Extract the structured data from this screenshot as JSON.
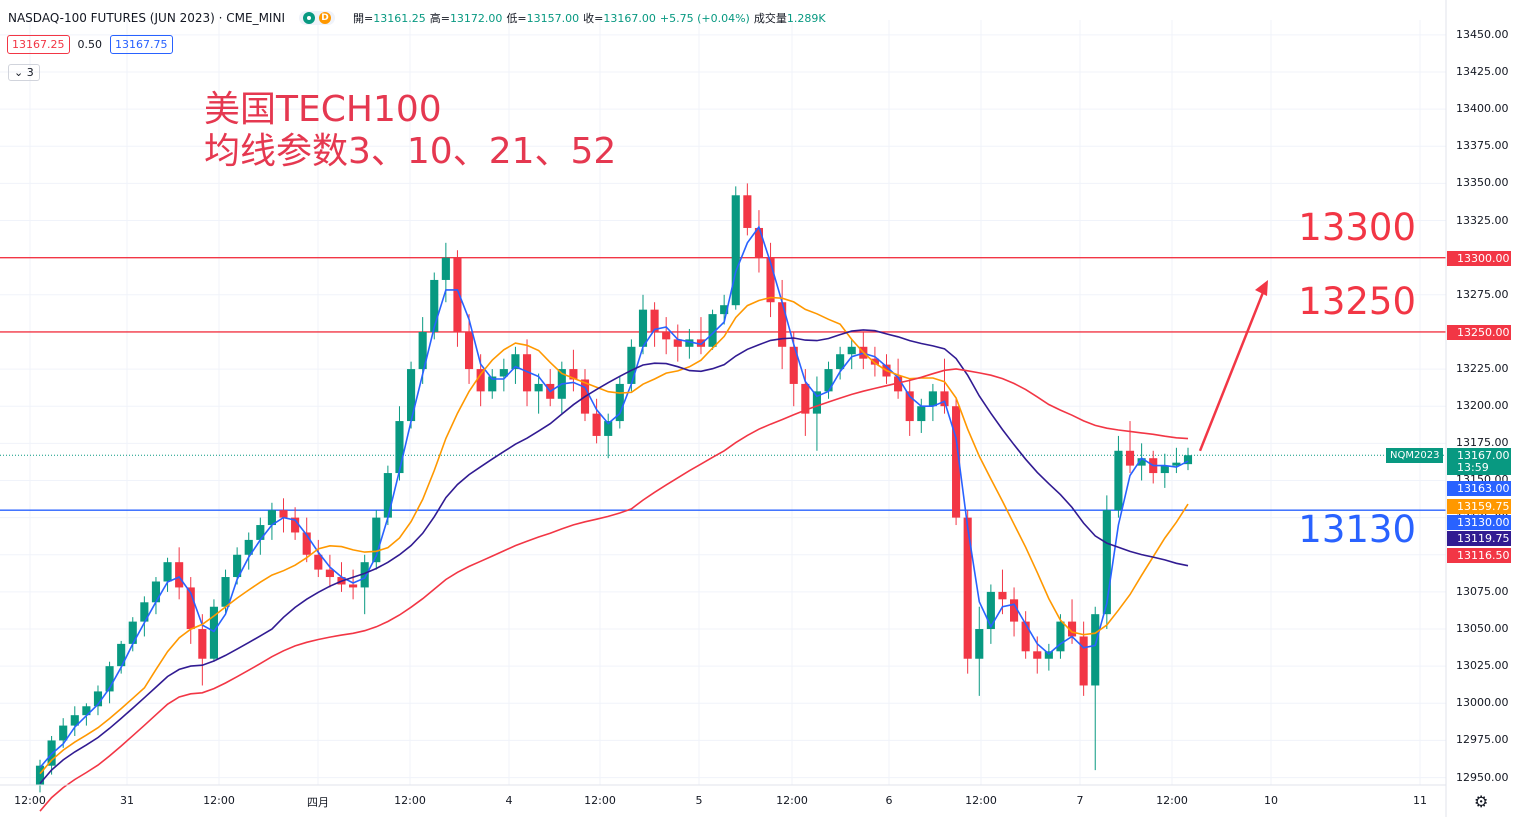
{
  "header": {
    "symbol": "NASDAQ-100 FUTURES (JUN 2023) · CME_MINI",
    "dot_letter": "D",
    "ohlc": [
      {
        "label": "開=",
        "value": "13161.25"
      },
      {
        "label": "高=",
        "value": "13172.00"
      },
      {
        "label": "低=",
        "value": "13157.00"
      },
      {
        "label": "收=",
        "value": "13167.00"
      },
      {
        "label": "",
        "value": "+5.75 (+0.04%)"
      },
      {
        "label": "成交量",
        "value": "1.289K"
      }
    ]
  },
  "bid": "13167.25",
  "spread": "0.50",
  "ask": "13167.75",
  "collapse_label": "3",
  "annotation": {
    "line1": "美国TECH100",
    "line2": "均线参数3、10、21、52"
  },
  "levels": [
    {
      "price": 13300,
      "label": "13300",
      "color": "#f23645"
    },
    {
      "price": 13250,
      "label": "13250",
      "color": "#f23645"
    },
    {
      "price": 13130,
      "label": "13130",
      "color": "#2962ff"
    }
  ],
  "price_axis": [
    "13450.00",
    "13425.00",
    "13400.00",
    "13375.00",
    "13350.00",
    "13325.00",
    "13300.00",
    "13275.00",
    "13250.00",
    "13225.00",
    "13200.00",
    "13175.00",
    "13150.00",
    "13125.00",
    "13100.00",
    "13075.00",
    "13050.00",
    "13025.00",
    "13000.00",
    "12975.00",
    "12950.00"
  ],
  "price_tags": [
    {
      "text": "13300.00",
      "color": "#f23645",
      "price": 13300
    },
    {
      "text": "13250.00",
      "color": "#f23645",
      "price": 13250
    },
    {
      "text": "13167.00",
      "color": "#089981",
      "price": 13167
    },
    {
      "text": "13:59",
      "color": "#089981",
      "price": 13159
    },
    {
      "text": "13163.00",
      "color": "#2962ff",
      "price": 13145
    },
    {
      "text": "13159.75",
      "color": "#ff9800",
      "price": 13133
    },
    {
      "text": "13130.00",
      "color": "#2962ff",
      "price": 13122
    },
    {
      "text": "13119.75",
      "color": "#311b92",
      "price": 13111
    },
    {
      "text": "13116.50",
      "color": "#f23645",
      "price": 13100
    }
  ],
  "instrument_tag": "NQM2023",
  "time_axis": [
    "12:00",
    "31",
    "12:00",
    "四月",
    "12:00",
    "4",
    "12:00",
    "5",
    "12:00",
    "6",
    "12:00",
    "7",
    "12:00",
    "10",
    "11"
  ],
  "chart_data": {
    "type": "candlestick",
    "symbol": "NQM2023",
    "ylim": [
      12945,
      13460
    ],
    "candles": [
      [
        12945,
        12962,
        12940,
        12958
      ],
      [
        12958,
        12978,
        12952,
        12975
      ],
      [
        12975,
        12990,
        12970,
        12985
      ],
      [
        12985,
        12998,
        12978,
        12992
      ],
      [
        12992,
        13000,
        12985,
        12998
      ],
      [
        12998,
        13012,
        12992,
        13008
      ],
      [
        13008,
        13028,
        13000,
        13025
      ],
      [
        13025,
        13042,
        13020,
        13040
      ],
      [
        13040,
        13058,
        13035,
        13055
      ],
      [
        13055,
        13072,
        13045,
        13068
      ],
      [
        13068,
        13085,
        13060,
        13082
      ],
      [
        13082,
        13098,
        13075,
        13095
      ],
      [
        13095,
        13105,
        13070,
        13078
      ],
      [
        13078,
        13085,
        13040,
        13050
      ],
      [
        13050,
        13060,
        13012,
        13030
      ],
      [
        13030,
        13070,
        13028,
        13065
      ],
      [
        13065,
        13090,
        13060,
        13085
      ],
      [
        13085,
        13105,
        13080,
        13100
      ],
      [
        13100,
        13115,
        13090,
        13110
      ],
      [
        13110,
        13125,
        13100,
        13120
      ],
      [
        13120,
        13135,
        13110,
        13130
      ],
      [
        13130,
        13138,
        13115,
        13125
      ],
      [
        13125,
        13132,
        13110,
        13115
      ],
      [
        13115,
        13125,
        13095,
        13100
      ],
      [
        13100,
        13110,
        13085,
        13090
      ],
      [
        13090,
        13100,
        13078,
        13085
      ],
      [
        13085,
        13095,
        13075,
        13080
      ],
      [
        13080,
        13090,
        13070,
        13078
      ],
      [
        13078,
        13100,
        13060,
        13095
      ],
      [
        13095,
        13130,
        13090,
        13125
      ],
      [
        13125,
        13160,
        13120,
        13155
      ],
      [
        13155,
        13200,
        13150,
        13190
      ],
      [
        13190,
        13230,
        13185,
        13225
      ],
      [
        13225,
        13260,
        13215,
        13250
      ],
      [
        13250,
        13290,
        13245,
        13285
      ],
      [
        13285,
        13310,
        13270,
        13300
      ],
      [
        13300,
        13305,
        13240,
        13250
      ],
      [
        13250,
        13262,
        13215,
        13225
      ],
      [
        13225,
        13235,
        13200,
        13210
      ],
      [
        13210,
        13225,
        13205,
        13220
      ],
      [
        13220,
        13232,
        13210,
        13225
      ],
      [
        13225,
        13240,
        13215,
        13235
      ],
      [
        13235,
        13245,
        13200,
        13210
      ],
      [
        13210,
        13222,
        13195,
        13215
      ],
      [
        13215,
        13225,
        13200,
        13205
      ],
      [
        13205,
        13230,
        13195,
        13225
      ],
      [
        13225,
        13238,
        13210,
        13218
      ],
      [
        13218,
        13225,
        13190,
        13195
      ],
      [
        13195,
        13205,
        13175,
        13180
      ],
      [
        13180,
        13195,
        13165,
        13190
      ],
      [
        13190,
        13220,
        13185,
        13215
      ],
      [
        13215,
        13245,
        13210,
        13240
      ],
      [
        13240,
        13275,
        13235,
        13265
      ],
      [
        13265,
        13270,
        13240,
        13250
      ],
      [
        13250,
        13260,
        13235,
        13245
      ],
      [
        13245,
        13255,
        13230,
        13240
      ],
      [
        13240,
        13252,
        13232,
        13245
      ],
      [
        13245,
        13260,
        13235,
        13240
      ],
      [
        13240,
        13265,
        13238,
        13262
      ],
      [
        13262,
        13275,
        13255,
        13268
      ],
      [
        13268,
        13348,
        13265,
        13342
      ],
      [
        13342,
        13350,
        13315,
        13320
      ],
      [
        13320,
        13332,
        13290,
        13300
      ],
      [
        13300,
        13310,
        13260,
        13270
      ],
      [
        13270,
        13285,
        13225,
        13240
      ],
      [
        13240,
        13250,
        13200,
        13215
      ],
      [
        13215,
        13225,
        13180,
        13195
      ],
      [
        13195,
        13220,
        13170,
        13210
      ],
      [
        13210,
        13230,
        13205,
        13225
      ],
      [
        13225,
        13240,
        13218,
        13235
      ],
      [
        13235,
        13245,
        13225,
        13240
      ],
      [
        13240,
        13250,
        13225,
        13232
      ],
      [
        13232,
        13240,
        13220,
        13228
      ],
      [
        13228,
        13235,
        13215,
        13220
      ],
      [
        13220,
        13232,
        13205,
        13210
      ],
      [
        13210,
        13218,
        13180,
        13190
      ],
      [
        13190,
        13205,
        13182,
        13200
      ],
      [
        13200,
        13215,
        13190,
        13210
      ],
      [
        13210,
        13232,
        13195,
        13200
      ],
      [
        13200,
        13205,
        13120,
        13125
      ],
      [
        13125,
        13130,
        13020,
        13030
      ],
      [
        13030,
        13065,
        13005,
        13050
      ],
      [
        13050,
        13080,
        13040,
        13075
      ],
      [
        13075,
        13090,
        13060,
        13070
      ],
      [
        13070,
        13078,
        13045,
        13055
      ],
      [
        13055,
        13062,
        13030,
        13035
      ],
      [
        13035,
        13045,
        13020,
        13030
      ],
      [
        13030,
        13040,
        13022,
        13035
      ],
      [
        13035,
        13060,
        13030,
        13055
      ],
      [
        13055,
        13070,
        13040,
        13045
      ],
      [
        13045,
        13055,
        13005,
        13012
      ],
      [
        13012,
        13065,
        12955,
        13060
      ],
      [
        13060,
        13140,
        13050,
        13130
      ],
      [
        13130,
        13180,
        13125,
        13170
      ],
      [
        13170,
        13190,
        13155,
        13160
      ],
      [
        13160,
        13175,
        13150,
        13165
      ],
      [
        13165,
        13170,
        13148,
        13155
      ],
      [
        13155,
        13168,
        13145,
        13160
      ],
      [
        13160,
        13172,
        13155,
        13162
      ],
      [
        13161,
        13172,
        13157,
        13167
      ]
    ],
    "ma_periods": [
      3,
      10,
      21,
      52
    ],
    "ma_colors": [
      "#2962ff",
      "#ff9800",
      "#311b92",
      "#f23645"
    ],
    "horizontal_levels": [
      13300,
      13250,
      13130
    ],
    "last_price": 13167.0,
    "arrow": {
      "from": 13170,
      "to": 13285
    }
  }
}
